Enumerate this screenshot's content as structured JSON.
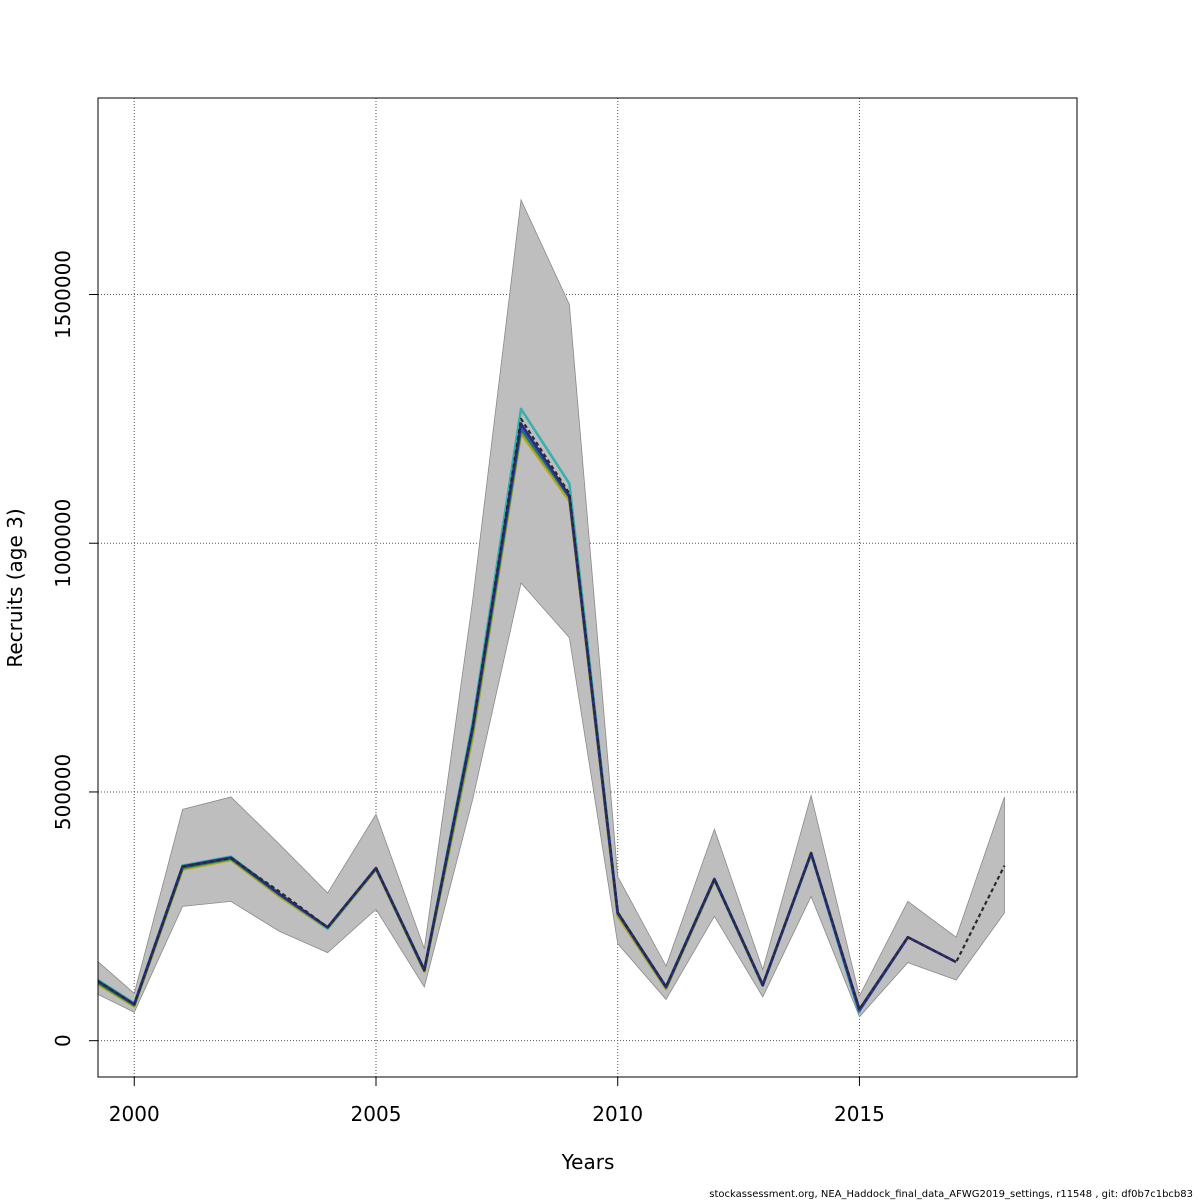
{
  "chart_data": {
    "type": "line",
    "xlabel": "Years",
    "ylabel": "Recruits (age 3)",
    "footer": "stockassessment.org, NEA_Haddock_final_data_AFWG2019_settings, r11548 , git: df0b7c1bcb83",
    "xlim": [
      1999.25,
      2019.5
    ],
    "ylim": [
      -73000,
      1895000
    ],
    "xticks": [
      2000,
      2005,
      2010,
      2015
    ],
    "yticks": [
      0,
      500000,
      1000000,
      1500000
    ],
    "grid": true,
    "confidence_band": {
      "color": "#bebebe",
      "x": [
        1999,
        2000,
        2001,
        2002,
        2003,
        2004,
        2005,
        2006,
        2007,
        2008,
        2009,
        2010,
        2011,
        2012,
        2013,
        2014,
        2015,
        2016,
        2017,
        2018
      ],
      "lower": [
        105000,
        57000,
        270000,
        280000,
        220000,
        177000,
        264000,
        108000,
        485000,
        920000,
        810000,
        195000,
        83000,
        250000,
        88000,
        290000,
        48000,
        157000,
        122000,
        257000
      ],
      "upper": [
        180000,
        95000,
        465000,
        490000,
        395000,
        297000,
        455000,
        185000,
        885000,
        1690000,
        1480000,
        330000,
        150000,
        425000,
        143000,
        493000,
        90000,
        280000,
        208000,
        490000
      ]
    },
    "series": [
      {
        "color": "#2a2a2a",
        "dashed": true,
        "x": [
          1999,
          2000,
          2001,
          2002,
          2003,
          2004,
          2005,
          2006,
          2007,
          2008,
          2009,
          2010,
          2011,
          2012,
          2013,
          2014,
          2015,
          2016,
          2017,
          2018
        ],
        "values": [
          135000,
          73000,
          350000,
          367000,
          300000,
          228000,
          347000,
          142000,
          630000,
          1250000,
          1100000,
          258000,
          108000,
          325000,
          112000,
          377000,
          63000,
          208000,
          158000,
          352000
        ]
      },
      {
        "color": "#2b2b8a",
        "x": [
          1999,
          2000,
          2001,
          2002,
          2003,
          2004,
          2005,
          2006,
          2007,
          2008,
          2009,
          2010,
          2011,
          2012,
          2013,
          2014,
          2015,
          2016,
          2017
        ],
        "values": [
          135000,
          73000,
          350000,
          368000,
          295000,
          228000,
          347000,
          142000,
          630000,
          1240000,
          1095000,
          257000,
          108000,
          325000,
          112000,
          377000,
          63000,
          208000,
          158000
        ]
      },
      {
        "color": "#3060c0",
        "x": [
          1999,
          2000,
          2001,
          2002,
          2003,
          2004,
          2005,
          2006,
          2007,
          2008,
          2009,
          2010,
          2011,
          2012,
          2013,
          2014,
          2015,
          2016
        ],
        "values": [
          135000,
          73000,
          350000,
          368000,
          295000,
          228000,
          347000,
          142000,
          628000,
          1235000,
          1095000,
          257000,
          108000,
          325000,
          112000,
          377000,
          60000,
          207000
        ]
      },
      {
        "color": "#1a6a80",
        "x": [
          1999,
          2000,
          2001,
          2002,
          2003,
          2004,
          2005,
          2006,
          2007,
          2008,
          2009,
          2010,
          2011,
          2012,
          2013,
          2014,
          2015
        ],
        "values": [
          135000,
          73000,
          350000,
          368000,
          295000,
          228000,
          347000,
          142000,
          628000,
          1235000,
          1095000,
          257000,
          108000,
          325000,
          112000,
          377000,
          58000
        ]
      },
      {
        "color": "#38b0b0",
        "x": [
          1999,
          2000,
          2001,
          2002,
          2003,
          2004,
          2005,
          2006,
          2007,
          2008,
          2009,
          2010,
          2011,
          2012,
          2013,
          2014,
          2015
        ],
        "values": [
          138000,
          75000,
          352000,
          370000,
          296000,
          226000,
          347000,
          143000,
          640000,
          1270000,
          1120000,
          258000,
          108000,
          325000,
          112000,
          375000,
          55000
        ]
      },
      {
        "color": "#1a7a4a",
        "x": [
          1999,
          2000,
          2001,
          2002,
          2003,
          2004,
          2005,
          2006,
          2007,
          2008,
          2009,
          2010,
          2011,
          2012,
          2013,
          2014
        ],
        "values": [
          132000,
          72000,
          348000,
          366000,
          294000,
          227000,
          346000,
          141000,
          625000,
          1230000,
          1093000,
          256000,
          107000,
          324000,
          111000,
          376000
        ]
      },
      {
        "color": "#7aa832",
        "x": [
          1999,
          2000,
          2001,
          2002,
          2003,
          2004,
          2005,
          2006,
          2007,
          2008,
          2009,
          2010,
          2011,
          2012,
          2013
        ],
        "values": [
          130000,
          70000,
          346000,
          365000,
          292000,
          226000,
          345000,
          140000,
          615000,
          1225000,
          1090000,
          255000,
          105000,
          323000,
          110000
        ]
      },
      {
        "color": "#c8a020",
        "x": [
          1999,
          2000,
          2001,
          2002,
          2003,
          2004,
          2005,
          2006,
          2007,
          2008,
          2009,
          2010,
          2011,
          2012
        ],
        "values": [
          128000,
          69000,
          344000,
          363000,
          290000,
          225000,
          344000,
          139000,
          610000,
          1220000,
          1085000,
          250000,
          104000,
          322000
        ]
      }
    ]
  }
}
